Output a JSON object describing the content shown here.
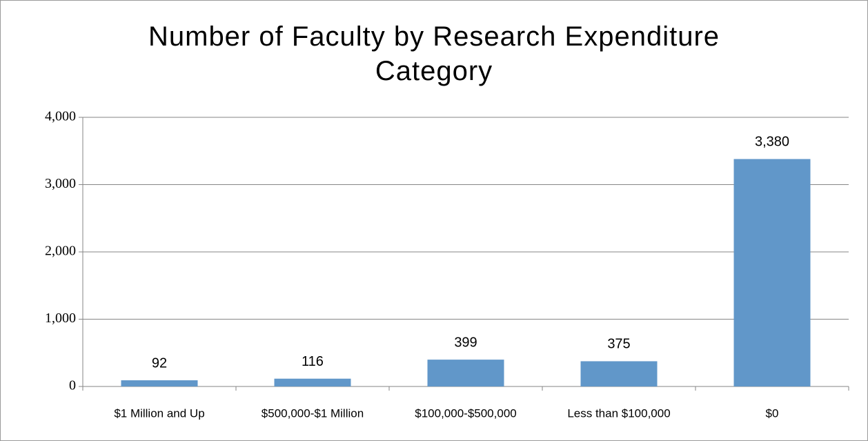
{
  "chart_data": {
    "type": "bar",
    "title": "Number of Faculty by Research Expenditure Category",
    "categories": [
      "$1 Million and Up",
      "$500,000-$1 Million",
      "$100,000-$500,000",
      "Less than $100,000",
      "$0"
    ],
    "values": [
      92,
      116,
      399,
      375,
      3380
    ],
    "value_labels": [
      "92",
      "116",
      "399",
      "375",
      "3,380"
    ],
    "color": "#6197c9",
    "ylim": [
      0,
      4000
    ],
    "yticks": [
      0,
      {
        "value": 1000,
        "label": "1,000"
      },
      {
        "value": 2000,
        "label": "2,000"
      },
      {
        "value": 3000,
        "label": "3,000"
      },
      {
        "value": 4000,
        "label": "4,000"
      }
    ],
    "grid": true
  }
}
